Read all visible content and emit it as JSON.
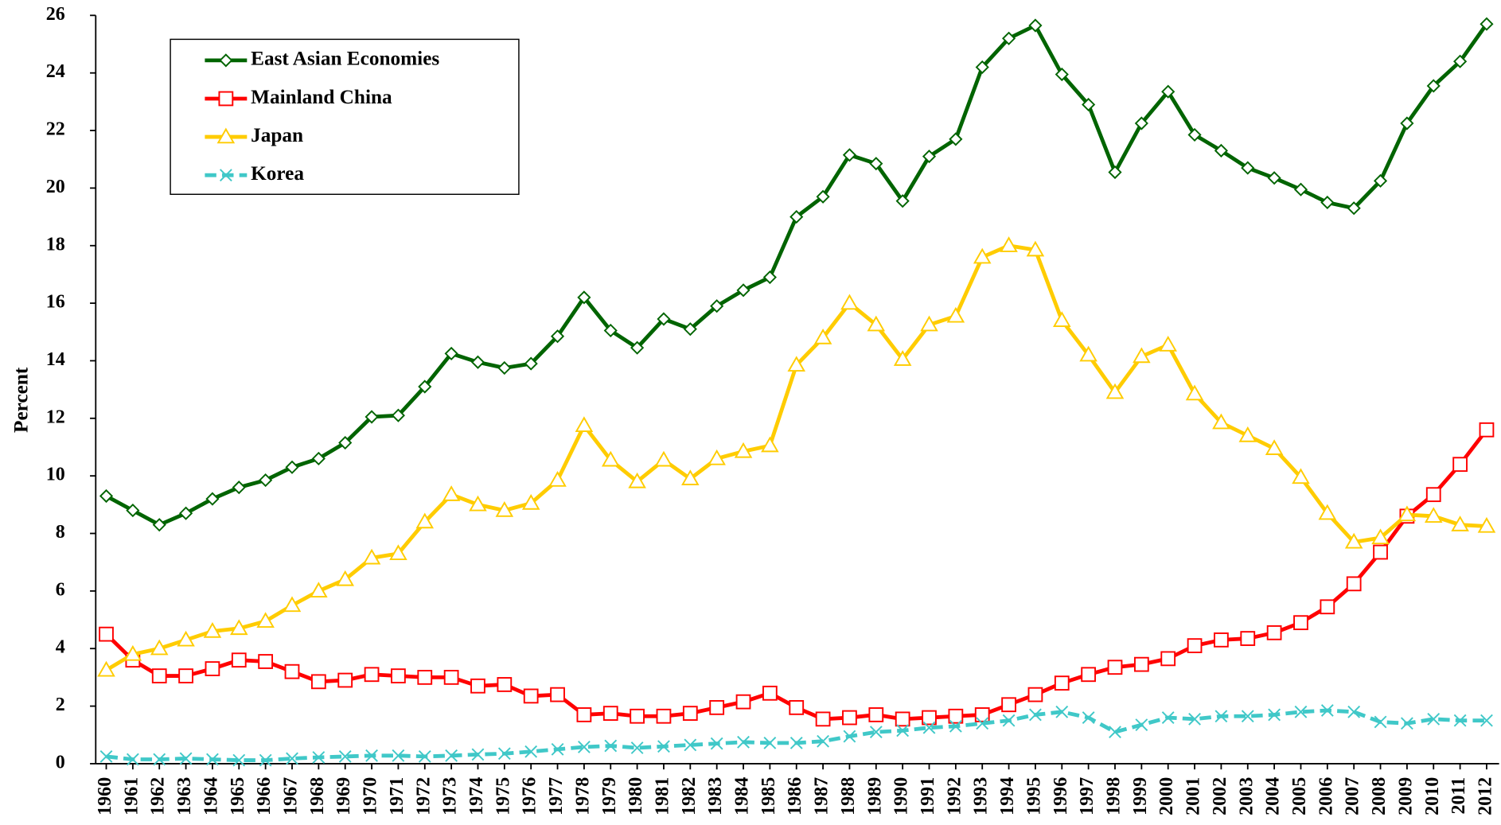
{
  "chart_data": {
    "type": "line",
    "y_label": "Percent",
    "categories": [
      "1960",
      "1961",
      "1962",
      "1963",
      "1964",
      "1965",
      "1966",
      "1967",
      "1968",
      "1969",
      "1970",
      "1971",
      "1972",
      "1973",
      "1974",
      "1975",
      "1976",
      "1977",
      "1978",
      "1979",
      "1980",
      "1981",
      "1982",
      "1983",
      "1984",
      "1985",
      "1986",
      "1987",
      "1988",
      "1989",
      "1990",
      "1991",
      "1992",
      "1993",
      "1994",
      "1995",
      "1996",
      "1997",
      "1998",
      "1999",
      "2000",
      "2001",
      "2002",
      "2003",
      "2004",
      "2005",
      "2006",
      "2007",
      "2008",
      "2009",
      "2010",
      "2011",
      "2012"
    ],
    "series": [
      {
        "name": "East Asian Economies",
        "color": "#006400",
        "marker": "diamond",
        "values": [
          9.3,
          8.8,
          8.3,
          8.7,
          9.2,
          9.6,
          9.85,
          10.3,
          10.6,
          11.15,
          12.05,
          12.1,
          13.1,
          14.25,
          13.95,
          13.75,
          13.9,
          14.85,
          16.2,
          15.05,
          14.45,
          15.45,
          15.1,
          15.9,
          16.45,
          16.9,
          19.0,
          19.7,
          21.15,
          20.85,
          19.55,
          21.1,
          21.7,
          24.2,
          25.2,
          25.65,
          23.95,
          22.9,
          20.55,
          22.25,
          23.35,
          21.85,
          21.3,
          20.7,
          20.35,
          19.95,
          19.5,
          19.3,
          20.25,
          22.25,
          23.55,
          24.4,
          25.7
        ]
      },
      {
        "name": "Mainland China",
        "color": "#ff0000",
        "marker": "square",
        "values": [
          4.5,
          3.6,
          3.05,
          3.05,
          3.3,
          3.6,
          3.55,
          3.2,
          2.85,
          2.9,
          3.1,
          3.05,
          3.0,
          3.0,
          2.7,
          2.75,
          2.35,
          2.4,
          1.7,
          1.75,
          1.65,
          1.65,
          1.75,
          1.95,
          2.15,
          2.45,
          1.95,
          1.55,
          1.6,
          1.7,
          1.55,
          1.6,
          1.65,
          1.7,
          2.05,
          2.4,
          2.8,
          3.1,
          3.35,
          3.45,
          3.65,
          4.1,
          4.3,
          4.35,
          4.55,
          4.9,
          5.45,
          6.25,
          7.35,
          8.6,
          9.35,
          10.4,
          11.6
        ]
      },
      {
        "name": "Japan",
        "color": "#ffcc00",
        "marker": "triangle",
        "values": [
          3.25,
          3.8,
          4.0,
          4.3,
          4.6,
          4.7,
          4.95,
          5.5,
          6.0,
          6.4,
          7.15,
          7.3,
          8.4,
          9.35,
          9.0,
          8.8,
          9.05,
          9.85,
          11.75,
          10.55,
          9.8,
          10.55,
          9.9,
          10.6,
          10.85,
          11.05,
          13.85,
          14.8,
          16.0,
          15.25,
          14.05,
          15.25,
          15.55,
          17.6,
          18.0,
          17.85,
          15.4,
          14.2,
          12.9,
          14.15,
          14.55,
          12.85,
          11.85,
          11.4,
          10.95,
          9.95,
          8.7,
          7.7,
          7.85,
          8.65,
          8.6,
          8.3,
          8.25
        ]
      },
      {
        "name": "Korea",
        "color": "#40c8c8",
        "marker": "x",
        "dashed": true,
        "values": [
          0.25,
          0.15,
          0.15,
          0.18,
          0.15,
          0.12,
          0.12,
          0.18,
          0.22,
          0.25,
          0.28,
          0.28,
          0.25,
          0.28,
          0.32,
          0.35,
          0.42,
          0.5,
          0.58,
          0.62,
          0.55,
          0.6,
          0.65,
          0.7,
          0.75,
          0.72,
          0.72,
          0.78,
          0.95,
          1.1,
          1.15,
          1.25,
          1.3,
          1.4,
          1.5,
          1.7,
          1.8,
          1.6,
          1.1,
          1.35,
          1.6,
          1.55,
          1.65,
          1.65,
          1.7,
          1.8,
          1.85,
          1.8,
          1.45,
          1.4,
          1.55,
          1.5,
          1.5
        ]
      }
    ],
    "ylim": [
      0,
      26
    ],
    "yticks": [
      0,
      2,
      4,
      6,
      8,
      10,
      12,
      14,
      16,
      18,
      20,
      22,
      24,
      26
    ],
    "legend": "upper left"
  }
}
